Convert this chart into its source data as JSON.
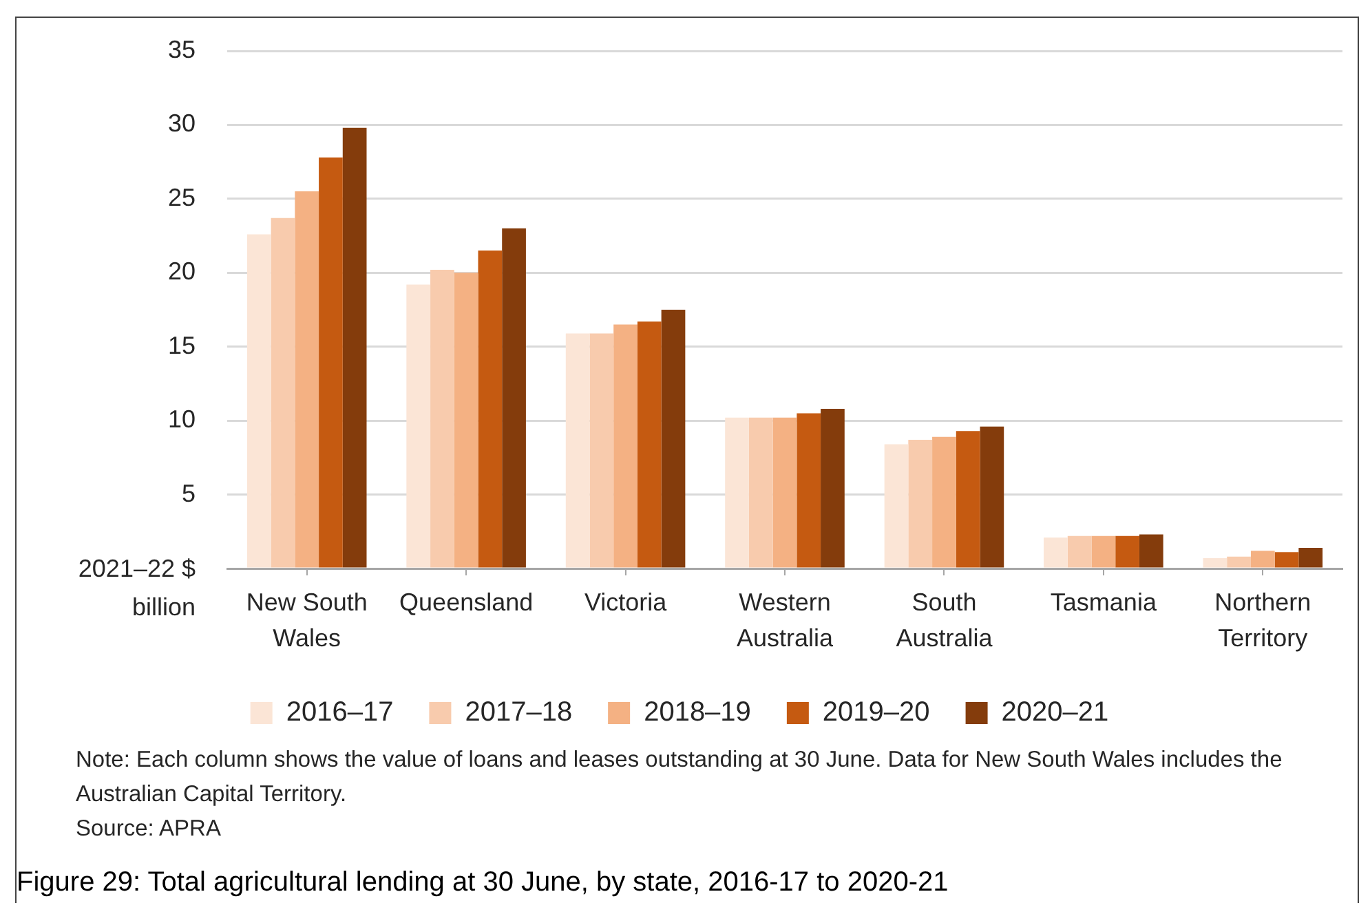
{
  "chart_data": {
    "type": "bar",
    "title": "Figure 29: Total agricultural lending at 30 June, by state, 2016-17 to 2020-21",
    "ylabel": "2021–22 $ billion",
    "categories": [
      "New South Wales",
      "Queensland",
      "Victoria",
      "Western Australia",
      "South Australia",
      "Tasmania",
      "Northern Territory"
    ],
    "series": [
      {
        "name": "2016–17",
        "color": "#fbe5d6",
        "values": [
          22.6,
          19.2,
          15.9,
          10.2,
          8.4,
          2.1,
          0.7
        ]
      },
      {
        "name": "2017–18",
        "color": "#f8cbad",
        "values": [
          23.7,
          20.2,
          15.9,
          10.2,
          8.7,
          2.2,
          0.8
        ]
      },
      {
        "name": "2018–19",
        "color": "#f4b183",
        "values": [
          25.5,
          20.0,
          16.5,
          10.2,
          8.9,
          2.2,
          1.2
        ]
      },
      {
        "name": "2019–20",
        "color": "#c55a11",
        "values": [
          27.8,
          21.5,
          16.7,
          10.5,
          9.3,
          2.2,
          1.1
        ]
      },
      {
        "name": "2020–21",
        "color": "#843c0c",
        "values": [
          29.8,
          23.0,
          17.5,
          10.8,
          9.6,
          2.3,
          1.4
        ]
      }
    ],
    "ylim": [
      0,
      35
    ],
    "yticks": [
      {
        "value": 0,
        "label": null
      },
      5,
      10,
      15,
      20,
      25,
      30,
      35
    ],
    "grid": "y",
    "legend": "bottom",
    "annotations": [
      "Note: Each column shows the value of loans and leases outstanding at 30 June. Data for New South Wales includes the Australian Capital Territory.",
      "Source: APRA"
    ]
  }
}
